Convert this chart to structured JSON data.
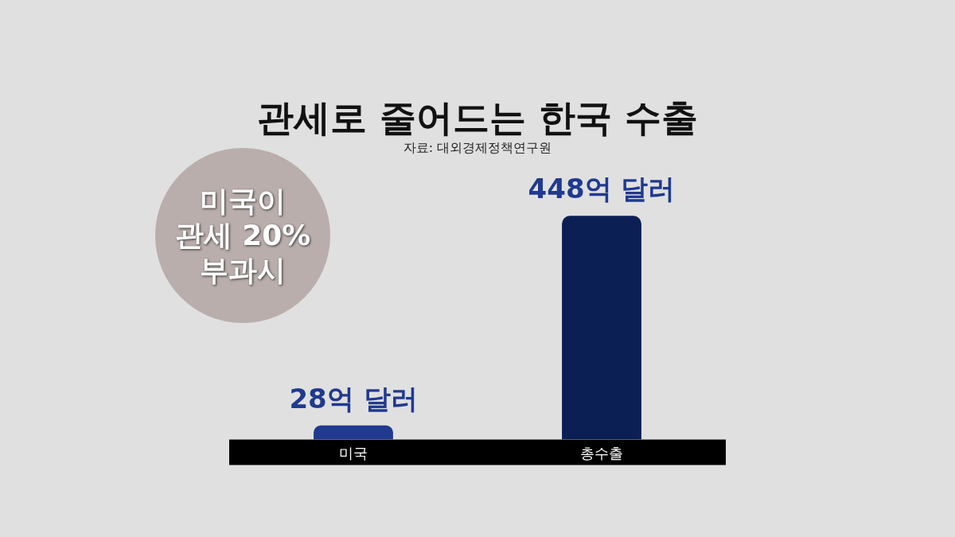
{
  "chart_data": {
    "type": "bar",
    "title": "관세로 줄어드는 한국 수출",
    "subtitle": "자료: 대외경제정책연구원",
    "annotations": [
      "미국이\n관세 20%\n부과시"
    ],
    "categories": [
      "미국",
      "총수출"
    ],
    "values": [
      28,
      448
    ],
    "colors": [
      "#1f3a8f",
      "#0b1f55"
    ],
    "value_labels": [
      "28억 달러",
      "448억 달러"
    ],
    "grid": false,
    "legend": false
  }
}
